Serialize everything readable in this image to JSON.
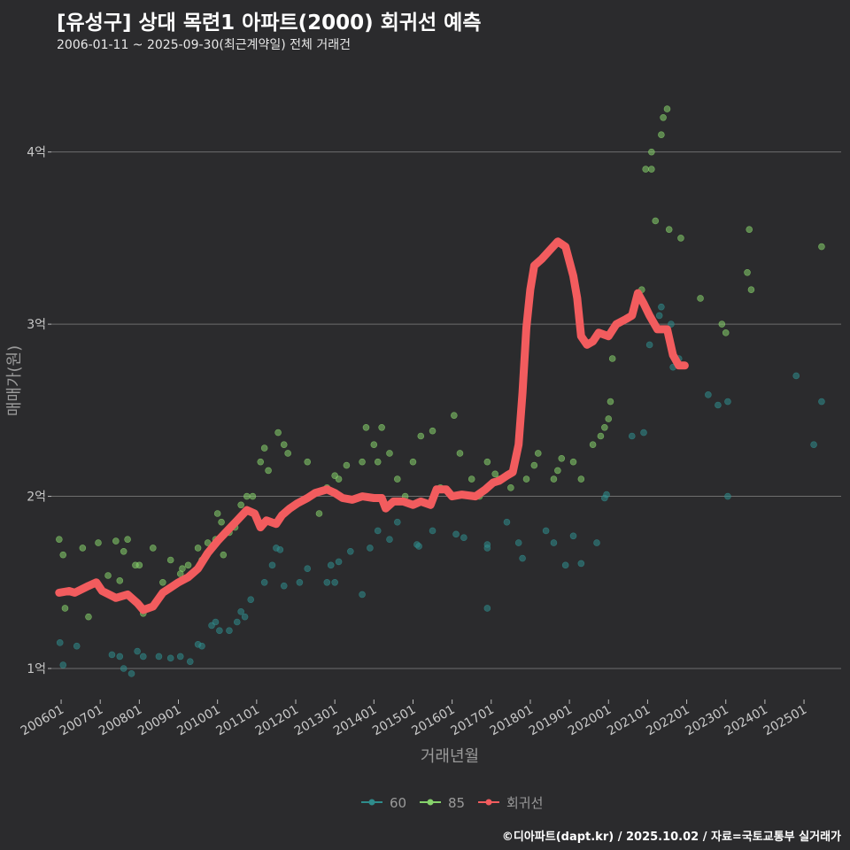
{
  "header": {
    "title": "[유성구] 상대 목련1 아파트(2000) 회귀선 예측",
    "subtitle": "2006-01-11 ~ 2025-09-30(최근계약일) 전체 거래건"
  },
  "footer": {
    "credit": "©디아파트(dapt.kr) / 2025.10.02 / 자료=국토교통부 실거래가"
  },
  "colors": {
    "background": "#2b2b2d",
    "grid": "#6e6e6e",
    "series_60": "#2f8c8c",
    "series_85": "#86d26b",
    "regression": "#f25c5e"
  },
  "chart_data": {
    "type": "scatter",
    "xlabel": "거래년월",
    "ylabel": "매매가(원)",
    "x_range": [
      2005.75,
      2025.95
    ],
    "ylim": [
      0.82,
      4.42
    ],
    "y_ticks": [
      {
        "value": 1,
        "label": "1억"
      },
      {
        "value": 2,
        "label": "2억"
      },
      {
        "value": 3,
        "label": "3억"
      },
      {
        "value": 4,
        "label": "4억"
      }
    ],
    "x_ticks": [
      {
        "value": 2006,
        "label": "200601"
      },
      {
        "value": 2007,
        "label": "200701"
      },
      {
        "value": 2008,
        "label": "200801"
      },
      {
        "value": 2009,
        "label": "200901"
      },
      {
        "value": 2010,
        "label": "201001"
      },
      {
        "value": 2011,
        "label": "201101"
      },
      {
        "value": 2012,
        "label": "201201"
      },
      {
        "value": 2013,
        "label": "201301"
      },
      {
        "value": 2014,
        "label": "201401"
      },
      {
        "value": 2015,
        "label": "201501"
      },
      {
        "value": 2016,
        "label": "201601"
      },
      {
        "value": 2017,
        "label": "201701"
      },
      {
        "value": 2018,
        "label": "201801"
      },
      {
        "value": 2019,
        "label": "201901"
      },
      {
        "value": 2020,
        "label": "202001"
      },
      {
        "value": 2021,
        "label": "202101"
      },
      {
        "value": 2022,
        "label": "202201"
      },
      {
        "value": 2023,
        "label": "202301"
      },
      {
        "value": 2024,
        "label": "202401"
      },
      {
        "value": 2025,
        "label": "202501"
      }
    ],
    "legend": [
      {
        "key": "series_60",
        "label": "60"
      },
      {
        "key": "series_85",
        "label": "85"
      },
      {
        "key": "regression",
        "label": "회귀선"
      }
    ],
    "series": [
      {
        "name": "60",
        "points": [
          [
            2005.97,
            1.15
          ],
          [
            2006.05,
            1.02
          ],
          [
            2006.4,
            1.13
          ],
          [
            2007.3,
            1.08
          ],
          [
            2007.5,
            1.07
          ],
          [
            2007.6,
            1.0
          ],
          [
            2007.8,
            0.97
          ],
          [
            2007.95,
            1.1
          ],
          [
            2008.1,
            1.07
          ],
          [
            2008.5,
            1.07
          ],
          [
            2008.8,
            1.06
          ],
          [
            2009.05,
            1.07
          ],
          [
            2009.3,
            1.04
          ],
          [
            2009.5,
            1.14
          ],
          [
            2009.6,
            1.13
          ],
          [
            2009.85,
            1.25
          ],
          [
            2009.95,
            1.27
          ],
          [
            2010.05,
            1.22
          ],
          [
            2010.3,
            1.22
          ],
          [
            2010.5,
            1.27
          ],
          [
            2010.6,
            1.33
          ],
          [
            2010.7,
            1.3
          ],
          [
            2010.85,
            1.4
          ],
          [
            2011.2,
            1.5
          ],
          [
            2011.4,
            1.6
          ],
          [
            2011.5,
            1.7
          ],
          [
            2011.6,
            1.69
          ],
          [
            2011.7,
            1.48
          ],
          [
            2012.1,
            1.5
          ],
          [
            2012.3,
            1.58
          ],
          [
            2012.8,
            1.5
          ],
          [
            2012.9,
            1.6
          ],
          [
            2013.0,
            1.5
          ],
          [
            2013.1,
            1.62
          ],
          [
            2013.4,
            1.68
          ],
          [
            2013.7,
            1.43
          ],
          [
            2013.9,
            1.7
          ],
          [
            2014.1,
            1.8
          ],
          [
            2014.4,
            1.75
          ],
          [
            2014.6,
            1.85
          ],
          [
            2015.1,
            1.72
          ],
          [
            2015.15,
            1.71
          ],
          [
            2015.5,
            1.8
          ],
          [
            2016.1,
            1.78
          ],
          [
            2016.3,
            1.76
          ],
          [
            2016.9,
            1.7
          ],
          [
            2016.9,
            1.72
          ],
          [
            2016.9,
            1.35
          ],
          [
            2017.4,
            1.85
          ],
          [
            2017.7,
            1.73
          ],
          [
            2017.8,
            1.64
          ],
          [
            2018.4,
            1.8
          ],
          [
            2018.6,
            1.73
          ],
          [
            2018.9,
            1.6
          ],
          [
            2019.1,
            1.77
          ],
          [
            2019.3,
            1.61
          ],
          [
            2019.7,
            1.73
          ],
          [
            2019.9,
            1.99
          ],
          [
            2019.95,
            2.01
          ],
          [
            2020.6,
            2.35
          ],
          [
            2020.9,
            2.37
          ],
          [
            2021.05,
            2.88
          ],
          [
            2021.3,
            3.05
          ],
          [
            2021.35,
            3.1
          ],
          [
            2021.6,
            3.0
          ],
          [
            2021.65,
            2.75
          ],
          [
            2021.8,
            2.8
          ],
          [
            2022.55,
            2.59
          ],
          [
            2022.8,
            2.53
          ],
          [
            2023.05,
            2.55
          ],
          [
            2023.05,
            2.0
          ],
          [
            2024.8,
            2.7
          ],
          [
            2025.25,
            2.3
          ],
          [
            2025.45,
            2.55
          ]
        ]
      },
      {
        "name": "85",
        "points": [
          [
            2005.95,
            1.75
          ],
          [
            2006.05,
            1.66
          ],
          [
            2006.1,
            1.35
          ],
          [
            2006.55,
            1.7
          ],
          [
            2006.7,
            1.3
          ],
          [
            2006.95,
            1.73
          ],
          [
            2007.2,
            1.54
          ],
          [
            2007.4,
            1.74
          ],
          [
            2007.6,
            1.68
          ],
          [
            2007.7,
            1.75
          ],
          [
            2007.5,
            1.51
          ],
          [
            2007.9,
            1.6
          ],
          [
            2008.0,
            1.6
          ],
          [
            2008.1,
            1.32
          ],
          [
            2008.35,
            1.7
          ],
          [
            2008.6,
            1.5
          ],
          [
            2008.8,
            1.63
          ],
          [
            2009.05,
            1.55
          ],
          [
            2009.1,
            1.58
          ],
          [
            2009.25,
            1.6
          ],
          [
            2009.5,
            1.7
          ],
          [
            2009.6,
            1.63
          ],
          [
            2009.7,
            1.65
          ],
          [
            2009.75,
            1.73
          ],
          [
            2009.85,
            1.7
          ],
          [
            2009.95,
            1.75
          ],
          [
            2010.0,
            1.9
          ],
          [
            2010.1,
            1.85
          ],
          [
            2010.15,
            1.66
          ],
          [
            2010.25,
            1.8
          ],
          [
            2010.3,
            1.79
          ],
          [
            2010.45,
            1.82
          ],
          [
            2010.6,
            1.95
          ],
          [
            2010.75,
            2.0
          ],
          [
            2010.9,
            2.0
          ],
          [
            2011.1,
            2.2
          ],
          [
            2011.2,
            2.28
          ],
          [
            2011.3,
            2.15
          ],
          [
            2011.55,
            2.37
          ],
          [
            2011.7,
            2.3
          ],
          [
            2011.8,
            2.25
          ],
          [
            2012.3,
            2.2
          ],
          [
            2012.6,
            1.9
          ],
          [
            2012.8,
            2.05
          ],
          [
            2013.0,
            2.12
          ],
          [
            2013.1,
            2.1
          ],
          [
            2013.3,
            2.18
          ],
          [
            2013.7,
            2.2
          ],
          [
            2013.8,
            2.4
          ],
          [
            2014.0,
            2.3
          ],
          [
            2014.1,
            2.2
          ],
          [
            2014.2,
            2.4
          ],
          [
            2014.4,
            2.25
          ],
          [
            2014.6,
            2.1
          ],
          [
            2014.8,
            2.0
          ],
          [
            2015.0,
            2.2
          ],
          [
            2015.2,
            2.35
          ],
          [
            2015.5,
            2.38
          ],
          [
            2015.7,
            2.05
          ],
          [
            2016.05,
            2.47
          ],
          [
            2016.2,
            2.25
          ],
          [
            2016.5,
            2.1
          ],
          [
            2016.7,
            2.0
          ],
          [
            2016.9,
            2.2
          ],
          [
            2017.1,
            2.13
          ],
          [
            2017.2,
            2.1
          ],
          [
            2017.5,
            2.05
          ],
          [
            2017.9,
            2.1
          ],
          [
            2018.1,
            2.18
          ],
          [
            2018.2,
            2.25
          ],
          [
            2018.6,
            2.1
          ],
          [
            2018.7,
            2.15
          ],
          [
            2018.8,
            2.22
          ],
          [
            2019.1,
            2.2
          ],
          [
            2019.3,
            2.1
          ],
          [
            2019.6,
            2.3
          ],
          [
            2019.8,
            2.35
          ],
          [
            2019.9,
            2.4
          ],
          [
            2020.0,
            2.45
          ],
          [
            2020.05,
            2.55
          ],
          [
            2020.1,
            2.8
          ],
          [
            2020.85,
            3.2
          ],
          [
            2020.95,
            3.9
          ],
          [
            2021.1,
            3.9
          ],
          [
            2021.2,
            3.6
          ],
          [
            2021.35,
            4.1
          ],
          [
            2021.4,
            4.2
          ],
          [
            2021.5,
            4.25
          ],
          [
            2021.55,
            3.55
          ],
          [
            2021.85,
            3.5
          ],
          [
            2022.35,
            3.15
          ],
          [
            2022.9,
            3.0
          ],
          [
            2023.0,
            2.95
          ],
          [
            2023.55,
            3.3
          ],
          [
            2023.6,
            3.55
          ],
          [
            2023.65,
            3.2
          ],
          [
            2025.45,
            3.45
          ],
          [
            2021.1,
            4.0
          ]
        ]
      }
    ],
    "regression": [
      [
        2005.95,
        1.44
      ],
      [
        2006.2,
        1.45
      ],
      [
        2006.35,
        1.44
      ],
      [
        2006.7,
        1.48
      ],
      [
        2006.9,
        1.5
      ],
      [
        2007.05,
        1.45
      ],
      [
        2007.4,
        1.41
      ],
      [
        2007.7,
        1.43
      ],
      [
        2007.95,
        1.38
      ],
      [
        2008.1,
        1.34
      ],
      [
        2008.35,
        1.36
      ],
      [
        2008.6,
        1.44
      ],
      [
        2008.8,
        1.47
      ],
      [
        2009.0,
        1.5
      ],
      [
        2009.25,
        1.53
      ],
      [
        2009.5,
        1.58
      ],
      [
        2009.75,
        1.67
      ],
      [
        2010.0,
        1.74
      ],
      [
        2010.25,
        1.8
      ],
      [
        2010.5,
        1.86
      ],
      [
        2010.75,
        1.92
      ],
      [
        2010.95,
        1.9
      ],
      [
        2011.1,
        1.82
      ],
      [
        2011.25,
        1.86
      ],
      [
        2011.5,
        1.84
      ],
      [
        2011.65,
        1.89
      ],
      [
        2011.85,
        1.93
      ],
      [
        2012.05,
        1.96
      ],
      [
        2012.3,
        1.99
      ],
      [
        2012.5,
        2.02
      ],
      [
        2012.8,
        2.04
      ],
      [
        2013.0,
        2.02
      ],
      [
        2013.2,
        1.99
      ],
      [
        2013.45,
        1.98
      ],
      [
        2013.7,
        2.0
      ],
      [
        2014.0,
        1.99
      ],
      [
        2014.2,
        1.99
      ],
      [
        2014.3,
        1.93
      ],
      [
        2014.5,
        1.97
      ],
      [
        2014.75,
        1.97
      ],
      [
        2015.0,
        1.95
      ],
      [
        2015.2,
        1.97
      ],
      [
        2015.45,
        1.95
      ],
      [
        2015.6,
        2.04
      ],
      [
        2015.85,
        2.04
      ],
      [
        2016.0,
        2.0
      ],
      [
        2016.25,
        2.01
      ],
      [
        2016.6,
        2.0
      ],
      [
        2016.85,
        2.04
      ],
      [
        2017.05,
        2.08
      ],
      [
        2017.2,
        2.09
      ],
      [
        2017.4,
        2.12
      ],
      [
        2017.55,
        2.14
      ],
      [
        2017.7,
        2.3
      ],
      [
        2017.8,
        2.6
      ],
      [
        2017.9,
        2.98
      ],
      [
        2018.0,
        3.2
      ],
      [
        2018.1,
        3.34
      ],
      [
        2018.3,
        3.38
      ],
      [
        2018.5,
        3.43
      ],
      [
        2018.7,
        3.48
      ],
      [
        2018.9,
        3.45
      ],
      [
        2019.1,
        3.28
      ],
      [
        2019.2,
        3.15
      ],
      [
        2019.3,
        2.93
      ],
      [
        2019.45,
        2.88
      ],
      [
        2019.6,
        2.9
      ],
      [
        2019.75,
        2.95
      ],
      [
        2020.0,
        2.93
      ],
      [
        2020.2,
        3.0
      ],
      [
        2020.45,
        3.03
      ],
      [
        2020.6,
        3.05
      ],
      [
        2020.75,
        3.18
      ],
      [
        2020.9,
        3.12
      ],
      [
        2021.05,
        3.05
      ],
      [
        2021.25,
        2.97
      ],
      [
        2021.5,
        2.97
      ],
      [
        2021.65,
        2.82
      ],
      [
        2021.8,
        2.76
      ],
      [
        2021.95,
        2.76
      ]
    ]
  }
}
